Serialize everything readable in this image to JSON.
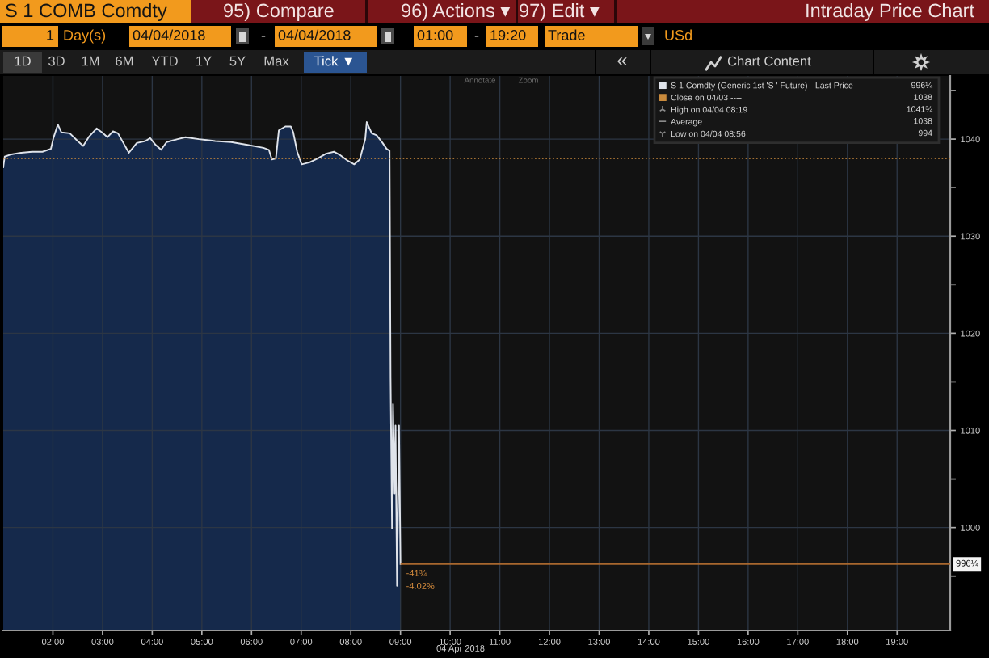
{
  "chart_data": {
    "type": "area",
    "title": "S 1 COMB Comdty",
    "subtitle": "Intraday Price Chart",
    "xlabel": "04 Apr 2018",
    "x": [
      1.0,
      1.03,
      1.14,
      1.36,
      1.58,
      1.79,
      1.96,
      2.01,
      2.1,
      2.17,
      2.34,
      2.5,
      2.61,
      2.72,
      2.88,
      2.99,
      3.1,
      3.21,
      3.31,
      3.42,
      3.53,
      3.69,
      3.86,
      3.96,
      4.07,
      4.18,
      4.29,
      4.51,
      4.67,
      4.94,
      5.27,
      5.59,
      5.92,
      6.24,
      6.35,
      6.41,
      6.49,
      6.55,
      6.68,
      6.79,
      6.84,
      6.92,
      7.01,
      7.17,
      7.33,
      7.5,
      7.66,
      7.77,
      7.93,
      8.07,
      8.18,
      8.29,
      8.32,
      8.42,
      8.52,
      8.64,
      8.72,
      8.78,
      8.8,
      8.83,
      8.85,
      8.88,
      8.9,
      8.93,
      8.97,
      9.0
    ],
    "series": [
      {
        "name": "S 1 Comdty (Generic 1st 'S ' Future) - Last Price",
        "color": "#dfe3ea",
        "values": [
          1037.1,
          1038.2,
          1038.4,
          1038.6,
          1038.7,
          1038.7,
          1039.0,
          1040.1,
          1041.5,
          1040.7,
          1040.6,
          1039.8,
          1039.3,
          1040.2,
          1041.1,
          1040.7,
          1040.2,
          1040.8,
          1040.6,
          1039.6,
          1038.6,
          1039.6,
          1039.8,
          1040.1,
          1039.4,
          1038.9,
          1039.7,
          1040.0,
          1040.2,
          1040.0,
          1039.8,
          1039.7,
          1039.4,
          1039.1,
          1038.9,
          1037.9,
          1038.0,
          1040.9,
          1041.3,
          1041.3,
          1040.7,
          1038.7,
          1037.4,
          1037.6,
          1038.0,
          1038.5,
          1038.7,
          1038.4,
          1037.8,
          1037.4,
          1037.9,
          1040.0,
          1041.75,
          1040.6,
          1040.4,
          1039.6,
          1039.0,
          1038.8,
          1015.4,
          999.9,
          1012.7,
          1003.5,
          1010.5,
          994,
          1010.5,
          996.25
        ]
      }
    ],
    "xlim": [
      1,
      20.07
    ],
    "xticks": [
      {
        "value": 2,
        "label": "02:00"
      },
      {
        "value": 3,
        "label": "03:00"
      },
      {
        "value": 4,
        "label": "04:00"
      },
      {
        "value": 5,
        "label": "05:00"
      },
      {
        "value": 6,
        "label": "06:00"
      },
      {
        "value": 7,
        "label": "07:00"
      },
      {
        "value": 8,
        "label": "08:00"
      },
      {
        "value": 9,
        "label": "09:00"
      },
      {
        "value": 10,
        "label": "10:00"
      },
      {
        "value": 11,
        "label": "11:00"
      },
      {
        "value": 12,
        "label": "12:00"
      },
      {
        "value": 13,
        "label": "13:00"
      },
      {
        "value": 14,
        "label": "14:00"
      },
      {
        "value": 15,
        "label": "15:00"
      },
      {
        "value": 16,
        "label": "16:00"
      },
      {
        "value": 17,
        "label": "17:00"
      },
      {
        "value": 18,
        "label": "18:00"
      },
      {
        "value": 19,
        "label": "19:00"
      }
    ],
    "ylim": [
      989.4,
      1046.5
    ],
    "yticks": [
      {
        "value": 995,
        "label": null
      },
      1000,
      {
        "value": 1005,
        "label": null
      },
      1010,
      {
        "value": 1015,
        "label": null
      },
      1020,
      {
        "value": 1025,
        "label": null
      },
      1030,
      {
        "value": 1035,
        "label": null
      },
      1040,
      {
        "value": 1045,
        "label": null
      }
    ],
    "ref_lines": [
      {
        "axis": "y",
        "value": 1038,
        "label": "Close on 04/03 ----",
        "color": "#c98a3c",
        "line_style": "dotted"
      },
      {
        "axis": "y",
        "value": 996.25,
        "label": "996¼",
        "color": "#a8672e"
      }
    ],
    "grid": true,
    "legend": "top right",
    "annotations": [
      "95) Compare",
      "96) Actions ▾",
      "97) Edit ▾",
      "1",
      "Day(s)",
      "04/04/2018",
      "-",
      "04/04/2018",
      "01:00",
      "-",
      "19:20",
      "Trade",
      "USd",
      "1D",
      "3D",
      "1M",
      "6M",
      "YTD",
      "1Y",
      "5Y",
      "Max",
      "Tick ▼",
      "«",
      "Chart Content",
      "Annotate",
      "Zoom",
      "996¼",
      "1038",
      "High on 04/04 08:19",
      "1041¾",
      "Average",
      "1038",
      "Low on 04/04 08:56",
      "994",
      {
        "text": "-41¾\n-4.02%",
        "x": 9.0,
        "y": 996.25
      }
    ]
  }
}
